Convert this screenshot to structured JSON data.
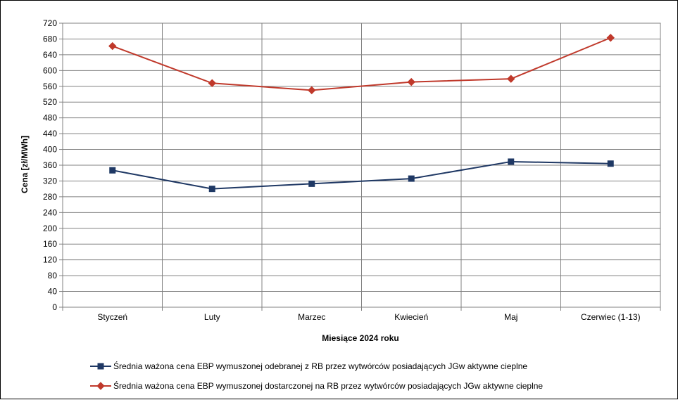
{
  "chart_data": {
    "type": "line",
    "xlabel": "Miesiące 2024  roku",
    "ylabel": "Cena [zł/MWh]",
    "ylim": [
      0,
      720
    ],
    "ytick_step": 40,
    "grid": true,
    "legend_position": "bottom",
    "categories": [
      "Styczeń",
      "Luty",
      "Marzec",
      "Kwiecień",
      "Maj",
      "Czerwiec (1-13)"
    ],
    "series": [
      {
        "name": "Średnia ważona cena EBP wymuszonej odebranej z RB przez wytwórców posiadających JGw aktywne cieplne",
        "values": [
          347,
          300,
          313,
          326,
          369,
          364
        ],
        "color": "#1f3864",
        "marker": "square"
      },
      {
        "name": "Średnia ważona cena EBP wymuszonej dostarczonej na RB przez wytwórców posiadających JGw aktywne cieplne",
        "values": [
          662,
          568,
          550,
          571,
          579,
          683
        ],
        "color": "#c0392b",
        "marker": "diamond"
      }
    ]
  }
}
